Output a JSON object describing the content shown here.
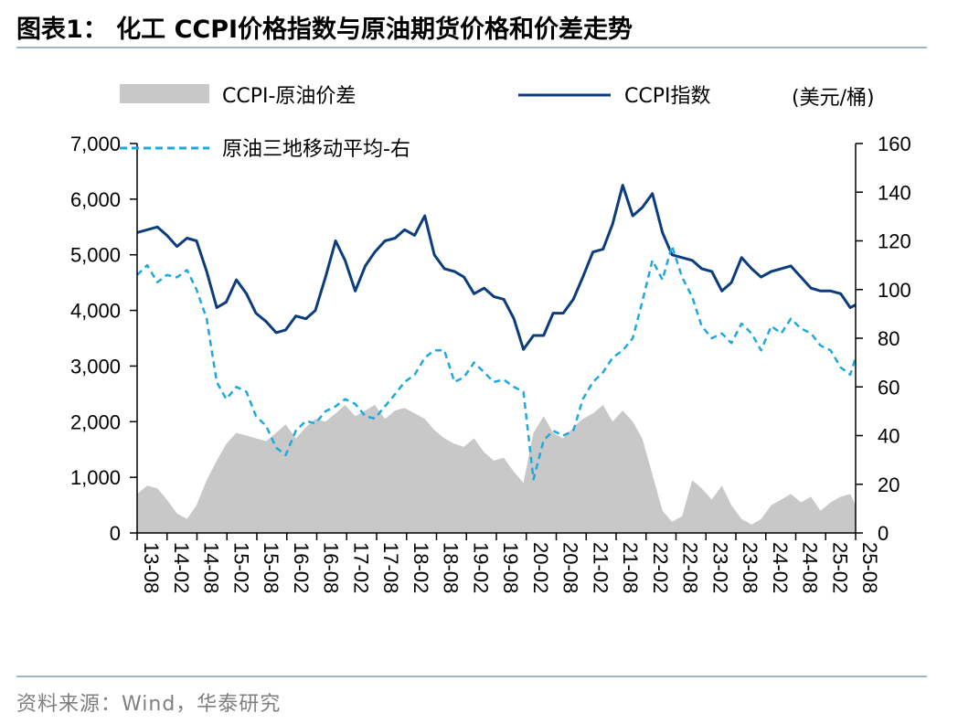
{
  "header": {
    "title": "图表1： 化工 CCPI价格指数与原油期货价格和价差走势"
  },
  "footer": {
    "source": "资料来源：Wind，华泰研究"
  },
  "chart_data": {
    "type": "line",
    "title": "化工 CCPI价格指数与原油期货价格和价差走势",
    "right_axis_unit": "(美元/桶)",
    "ylim_left": [
      0,
      7000
    ],
    "ylim_right": [
      0,
      160
    ],
    "yticks_left": [
      "0",
      "1,000",
      "2,000",
      "3,000",
      "4,000",
      "5,000",
      "6,000",
      "7,000"
    ],
    "yticks_right": [
      "0",
      "20",
      "40",
      "60",
      "80",
      "100",
      "120",
      "140",
      "160"
    ],
    "x_ticks": [
      "13-08",
      "14-02",
      "14-08",
      "15-02",
      "15-08",
      "16-02",
      "16-08",
      "17-02",
      "17-08",
      "18-02",
      "18-08",
      "19-02",
      "19-08",
      "20-02",
      "20-08",
      "21-02",
      "21-08",
      "22-02",
      "22-08",
      "23-02",
      "23-08",
      "24-02",
      "24-08",
      "25-02",
      "25-08"
    ],
    "legend": [
      "CCPI-原油价差",
      "CCPI指数",
      "原油三地移动平均-右"
    ],
    "series": [
      {
        "name": "CCPI-原油价差",
        "kind": "area",
        "axis": "left",
        "color": "#c8c8c8",
        "x": [
          2013.58,
          2013.75,
          2013.92,
          2014.08,
          2014.25,
          2014.42,
          2014.58,
          2014.75,
          2014.92,
          2015.08,
          2015.25,
          2015.42,
          2015.58,
          2015.75,
          2015.92,
          2016.08,
          2016.25,
          2016.42,
          2016.58,
          2016.75,
          2016.92,
          2017.08,
          2017.25,
          2017.42,
          2017.58,
          2017.75,
          2017.92,
          2018.08,
          2018.25,
          2018.42,
          2018.58,
          2018.75,
          2018.92,
          2019.08,
          2019.25,
          2019.42,
          2019.58,
          2019.75,
          2019.92,
          2020.08,
          2020.25,
          2020.42,
          2020.58,
          2020.75,
          2020.92,
          2021.08,
          2021.25,
          2021.42,
          2021.58,
          2021.75,
          2021.92,
          2022.08,
          2022.25,
          2022.42,
          2022.58,
          2022.75,
          2022.92,
          2023.08,
          2023.25,
          2023.42,
          2023.58,
          2023.75,
          2023.92,
          2024.08,
          2024.25,
          2024.42,
          2024.58,
          2024.75,
          2024.92,
          2025.08,
          2025.25,
          2025.42,
          2025.58,
          2025.67
        ],
        "values": [
          700,
          850,
          800,
          600,
          350,
          250,
          500,
          950,
          1300,
          1600,
          1800,
          1750,
          1700,
          1650,
          1800,
          1950,
          1700,
          1900,
          2050,
          2000,
          2150,
          2300,
          2100,
          2200,
          2300,
          2050,
          2200,
          2250,
          2150,
          2050,
          1850,
          1700,
          1600,
          1550,
          1700,
          1450,
          1300,
          1350,
          1100,
          900,
          1800,
          2100,
          1800,
          1700,
          1900,
          2050,
          2150,
          2300,
          2000,
          2200,
          2000,
          1700,
          1050,
          400,
          200,
          300,
          950,
          800,
          600,
          850,
          500,
          250,
          150,
          250,
          500,
          600,
          700,
          550,
          650,
          400,
          550,
          650,
          700,
          500
        ]
      },
      {
        "name": "CCPI指数",
        "kind": "line",
        "axis": "left",
        "color": "#0b3c7e",
        "x": [
          2013.58,
          2013.75,
          2013.92,
          2014.08,
          2014.25,
          2014.42,
          2014.58,
          2014.75,
          2014.92,
          2015.08,
          2015.25,
          2015.42,
          2015.58,
          2015.75,
          2015.92,
          2016.08,
          2016.25,
          2016.42,
          2016.58,
          2016.75,
          2016.92,
          2017.08,
          2017.25,
          2017.42,
          2017.58,
          2017.75,
          2017.92,
          2018.08,
          2018.25,
          2018.42,
          2018.58,
          2018.75,
          2018.92,
          2019.08,
          2019.25,
          2019.42,
          2019.58,
          2019.75,
          2019.92,
          2020.08,
          2020.25,
          2020.42,
          2020.58,
          2020.75,
          2020.92,
          2021.08,
          2021.25,
          2021.42,
          2021.58,
          2021.75,
          2021.92,
          2022.08,
          2022.25,
          2022.42,
          2022.58,
          2022.75,
          2022.92,
          2023.08,
          2023.25,
          2023.42,
          2023.58,
          2023.75,
          2023.92,
          2024.08,
          2024.25,
          2024.42,
          2024.58,
          2024.75,
          2024.92,
          2025.08,
          2025.25,
          2025.42,
          2025.58,
          2025.67
        ],
        "values": [
          5400,
          5450,
          5500,
          5350,
          5150,
          5300,
          5250,
          4700,
          4050,
          4150,
          4550,
          4300,
          3950,
          3800,
          3600,
          3650,
          3900,
          3850,
          4000,
          4600,
          5250,
          4900,
          4350,
          4800,
          5050,
          5250,
          5300,
          5450,
          5350,
          5700,
          5000,
          4750,
          4700,
          4600,
          4300,
          4400,
          4250,
          4200,
          3850,
          3300,
          3550,
          3550,
          3950,
          3950,
          4200,
          4600,
          5050,
          5100,
          5550,
          6250,
          5700,
          5850,
          6100,
          5400,
          5000,
          4950,
          4900,
          4750,
          4700,
          4350,
          4500,
          4950,
          4750,
          4600,
          4700,
          4750,
          4800,
          4600,
          4400,
          4350,
          4350,
          4300,
          4050,
          4100
        ]
      },
      {
        "name": "原油三地移动平均-右",
        "kind": "line",
        "axis": "right",
        "color": "#1fa8df",
        "dashed": true,
        "x": [
          2013.58,
          2013.75,
          2013.92,
          2014.08,
          2014.25,
          2014.42,
          2014.58,
          2014.75,
          2014.92,
          2015.08,
          2015.25,
          2015.42,
          2015.58,
          2015.75,
          2015.92,
          2016.08,
          2016.25,
          2016.42,
          2016.58,
          2016.75,
          2016.92,
          2017.08,
          2017.25,
          2017.42,
          2017.58,
          2017.75,
          2017.92,
          2018.08,
          2018.25,
          2018.42,
          2018.58,
          2018.75,
          2018.92,
          2019.08,
          2019.25,
          2019.42,
          2019.58,
          2019.75,
          2019.92,
          2020.08,
          2020.25,
          2020.42,
          2020.58,
          2020.75,
          2020.92,
          2021.08,
          2021.25,
          2021.42,
          2021.58,
          2021.75,
          2021.92,
          2022.08,
          2022.25,
          2022.42,
          2022.58,
          2022.75,
          2022.92,
          2023.08,
          2023.25,
          2023.42,
          2023.58,
          2023.75,
          2023.92,
          2024.08,
          2024.25,
          2024.42,
          2024.58,
          2024.75,
          2024.92,
          2025.08,
          2025.25,
          2025.42,
          2025.58,
          2025.67
        ],
        "values": [
          106,
          110,
          103,
          106,
          105,
          108,
          100,
          88,
          62,
          55,
          60,
          58,
          48,
          44,
          35,
          32,
          42,
          46,
          45,
          50,
          52,
          55,
          53,
          48,
          47,
          52,
          57,
          62,
          65,
          72,
          75,
          75,
          62,
          64,
          70,
          66,
          62,
          63,
          60,
          58,
          22,
          38,
          42,
          40,
          42,
          55,
          62,
          66,
          72,
          75,
          80,
          95,
          112,
          104,
          118,
          105,
          97,
          85,
          80,
          82,
          78,
          86,
          82,
          75,
          85,
          82,
          88,
          84,
          82,
          77,
          75,
          68,
          65,
          72
        ]
      }
    ]
  }
}
